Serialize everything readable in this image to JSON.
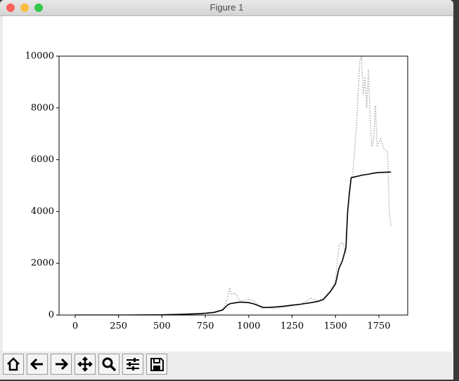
{
  "window": {
    "title": "Figure 1"
  },
  "chart_data": {
    "type": "line",
    "x": [
      0,
      100,
      200,
      300,
      400,
      500,
      600,
      700,
      750,
      800,
      850,
      880,
      890,
      900,
      920,
      950,
      1000,
      1030,
      1050,
      1080,
      1100,
      1150,
      1200,
      1250,
      1300,
      1360,
      1400,
      1430,
      1450,
      1470,
      1500,
      1520,
      1540,
      1560,
      1570,
      1580,
      1590,
      1600,
      1620,
      1640,
      1650,
      1660,
      1670,
      1680,
      1690,
      1700,
      1710,
      1720,
      1730,
      1740,
      1760,
      1780,
      1800,
      1810,
      1820
    ],
    "series": [
      {
        "color": "#b0b0b0",
        "linestyle": "dotted",
        "values": [
          0,
          0,
          0,
          0,
          5,
          10,
          20,
          40,
          60,
          120,
          180,
          700,
          1050,
          800,
          850,
          550,
          600,
          550,
          400,
          250,
          300,
          250,
          300,
          350,
          400,
          650,
          550,
          650,
          800,
          950,
          1300,
          2700,
          2800,
          2400,
          4000,
          4800,
          5200,
          5500,
          7200,
          9800,
          10000,
          8500,
          9200,
          8000,
          9500,
          7500,
          6500,
          6800,
          8100,
          6500,
          6800,
          6400,
          6300,
          4000,
          3400
        ]
      },
      {
        "color": "#000000",
        "linestyle": "solid",
        "values": [
          0,
          0,
          0,
          0,
          5,
          10,
          25,
          50,
          70,
          100,
          200,
          400,
          430,
          450,
          470,
          500,
          480,
          430,
          380,
          300,
          290,
          310,
          340,
          380,
          420,
          480,
          530,
          600,
          750,
          900,
          1200,
          1800,
          2100,
          2600,
          4000,
          4700,
          5300,
          5320,
          5350,
          5380,
          5400,
          5410,
          5420,
          5430,
          5440,
          5450,
          5470,
          5480,
          5490,
          5500,
          5510,
          5510,
          5520,
          5520,
          5520
        ]
      }
    ],
    "xlim": [
      -93,
      1916
    ],
    "ylim": [
      0,
      10000
    ],
    "xticks": [
      0,
      250,
      500,
      750,
      1000,
      1250,
      1500,
      1750
    ],
    "yticks": [
      0,
      2000,
      4000,
      6000,
      8000,
      10000
    ],
    "grid": false
  }
}
